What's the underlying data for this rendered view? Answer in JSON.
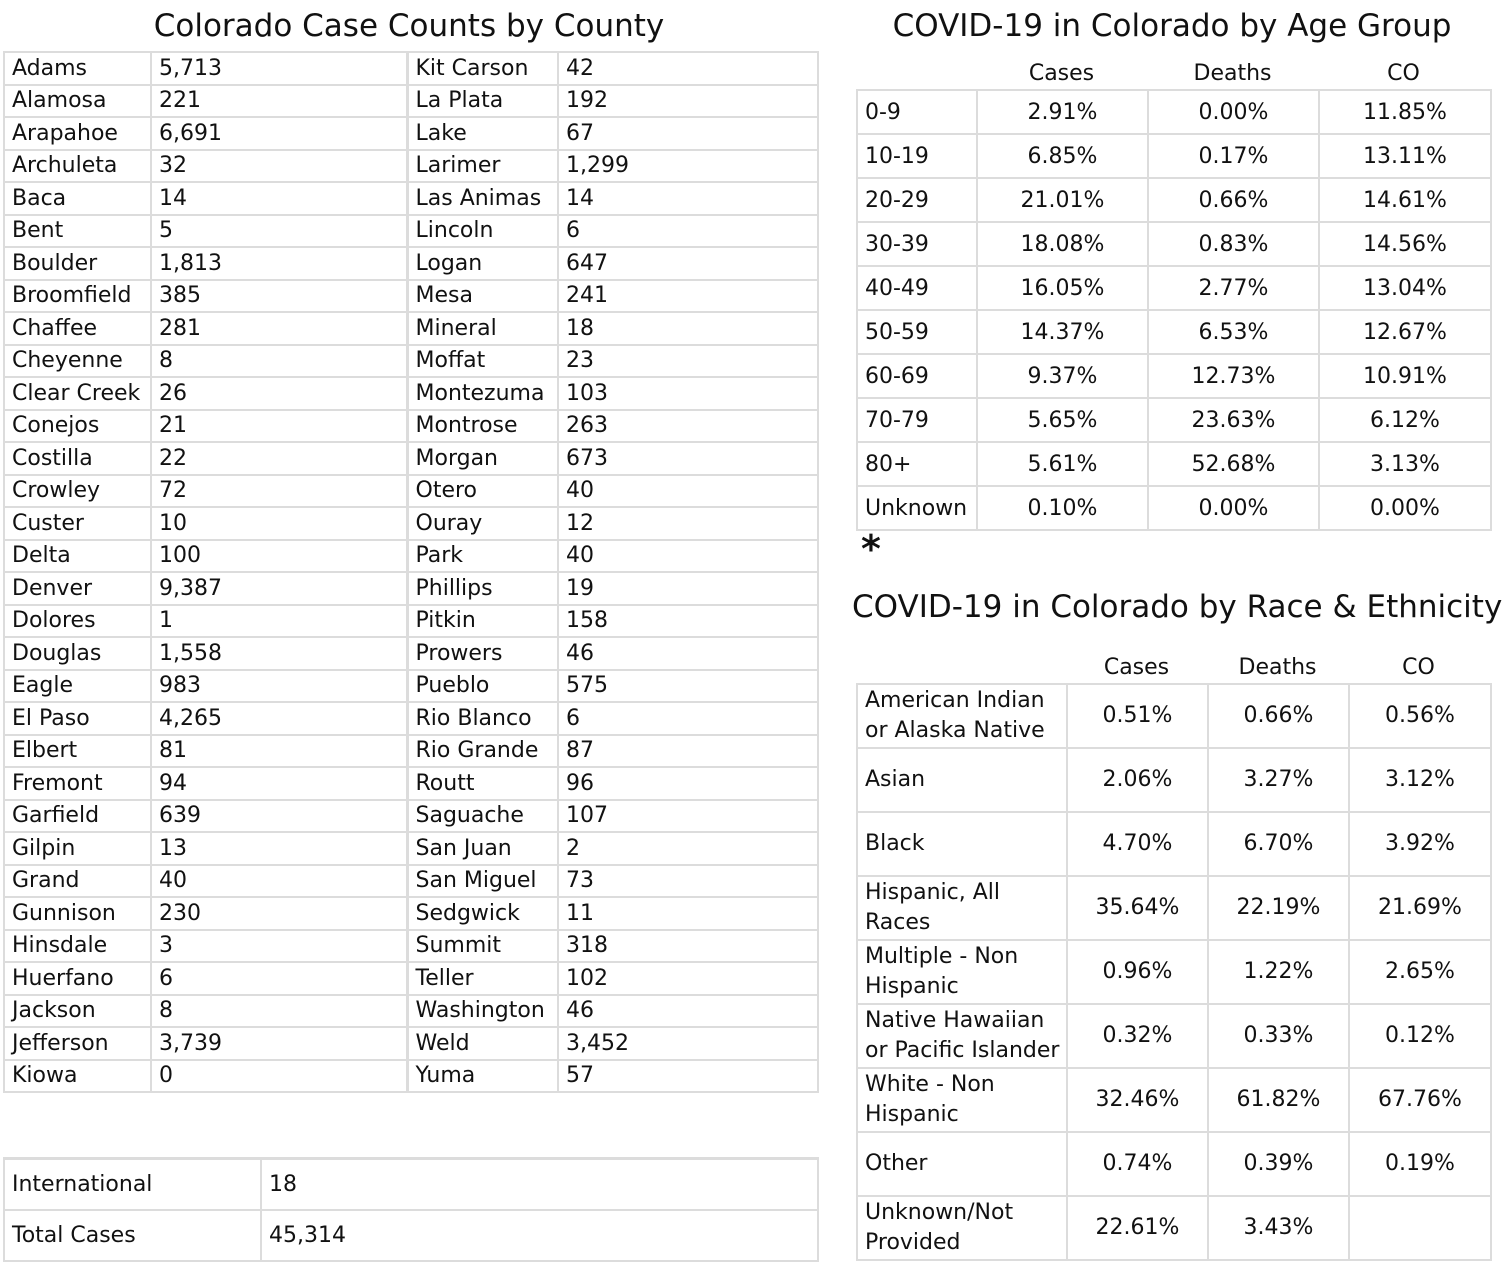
{
  "county": {
    "title": "Colorado Case Counts by County",
    "rows": [
      [
        "Adams",
        "5,713",
        "Kit Carson",
        "42"
      ],
      [
        "Alamosa",
        "221",
        "La Plata",
        "192"
      ],
      [
        "Arapahoe",
        "6,691",
        "Lake",
        "67"
      ],
      [
        "Archuleta",
        "32",
        "Larimer",
        "1,299"
      ],
      [
        "Baca",
        "14",
        "Las Animas",
        "14"
      ],
      [
        "Bent",
        "5",
        "Lincoln",
        "6"
      ],
      [
        "Boulder",
        "1,813",
        "Logan",
        "647"
      ],
      [
        "Broomfield",
        "385",
        "Mesa",
        "241"
      ],
      [
        "Chaffee",
        "281",
        "Mineral",
        "18"
      ],
      [
        "Cheyenne",
        "8",
        "Moffat",
        "23"
      ],
      [
        "Clear Creek",
        "26",
        "Montezuma",
        "103"
      ],
      [
        "Conejos",
        "21",
        "Montrose",
        "263"
      ],
      [
        "Costilla",
        "22",
        "Morgan",
        "673"
      ],
      [
        "Crowley",
        "72",
        "Otero",
        "40"
      ],
      [
        "Custer",
        "10",
        "Ouray",
        "12"
      ],
      [
        "Delta",
        "100",
        "Park",
        "40"
      ],
      [
        "Denver",
        "9,387",
        "Phillips",
        "19"
      ],
      [
        "Dolores",
        "1",
        "Pitkin",
        "158"
      ],
      [
        "Douglas",
        "1,558",
        "Prowers",
        "46"
      ],
      [
        "Eagle",
        "983",
        "Pueblo",
        "575"
      ],
      [
        "El Paso",
        "4,265",
        "Rio Blanco",
        "6"
      ],
      [
        "Elbert",
        "81",
        "Rio Grande",
        "87"
      ],
      [
        "Fremont",
        "94",
        "Routt",
        "96"
      ],
      [
        "Garfield",
        "639",
        "Saguache",
        "107"
      ],
      [
        "Gilpin",
        "13",
        "San Juan",
        "2"
      ],
      [
        "Grand",
        "40",
        "San Miguel",
        "73"
      ],
      [
        "Gunnison",
        "230",
        "Sedgwick",
        "11"
      ],
      [
        "Hinsdale",
        "3",
        "Summit",
        "318"
      ],
      [
        "Huerfano",
        "6",
        "Teller",
        "102"
      ],
      [
        "Jackson",
        "8",
        "Washington",
        "46"
      ],
      [
        "Jefferson",
        "3,739",
        "Weld",
        "3,452"
      ],
      [
        "Kiowa",
        "0",
        "Yuma",
        "57"
      ]
    ],
    "footer": [
      {
        "label": "International",
        "value": "18"
      },
      {
        "label": "Total Cases",
        "value": "45,314"
      }
    ]
  },
  "age": {
    "title": "COVID-19 in Colorado by Age Group",
    "headers": [
      "Cases",
      "Deaths",
      "CO"
    ],
    "rows": [
      [
        "0-9",
        "2.91%",
        "0.00%",
        "11.85%"
      ],
      [
        "10-19",
        "6.85%",
        "0.17%",
        "13.11%"
      ],
      [
        "20-29",
        "21.01%",
        "0.66%",
        "14.61%"
      ],
      [
        "30-39",
        "18.08%",
        "0.83%",
        "14.56%"
      ],
      [
        "40-49",
        "16.05%",
        "2.77%",
        "13.04%"
      ],
      [
        "50-59",
        "14.37%",
        "6.53%",
        "12.67%"
      ],
      [
        "60-69",
        "9.37%",
        "12.73%",
        "10.91%"
      ],
      [
        "70-79",
        "5.65%",
        "23.63%",
        "6.12%"
      ],
      [
        "80+",
        "5.61%",
        "52.68%",
        "3.13%"
      ],
      [
        "Unknown",
        "0.10%",
        "0.00%",
        "0.00%"
      ]
    ],
    "footnote_mark": "*"
  },
  "race": {
    "title": "COVID-19 in Colorado by Race & Ethnicity",
    "headers": [
      "Cases",
      "Deaths",
      "CO"
    ],
    "rows": [
      [
        "American Indian or Alaska Native",
        "0.51%",
        "0.66%",
        "0.56%"
      ],
      [
        "Asian",
        "2.06%",
        "3.27%",
        "3.12%"
      ],
      [
        "Black",
        "4.70%",
        "6.70%",
        "3.92%"
      ],
      [
        "Hispanic, All Races",
        "35.64%",
        "22.19%",
        "21.69%"
      ],
      [
        "Multiple - Non Hispanic",
        "0.96%",
        "1.22%",
        "2.65%"
      ],
      [
        "Native Hawaiian or Pacific Islander",
        "0.32%",
        "0.33%",
        "0.12%"
      ],
      [
        "White - Non Hispanic",
        "32.46%",
        "61.82%",
        "67.76%"
      ],
      [
        "Other",
        "0.74%",
        "0.39%",
        "0.19%"
      ],
      [
        "Unknown/Not Provided",
        "22.61%",
        "3.43%",
        ""
      ]
    ]
  },
  "colors": {
    "border": "#dcdcdc",
    "text": "#111111",
    "background": "#ffffff"
  }
}
